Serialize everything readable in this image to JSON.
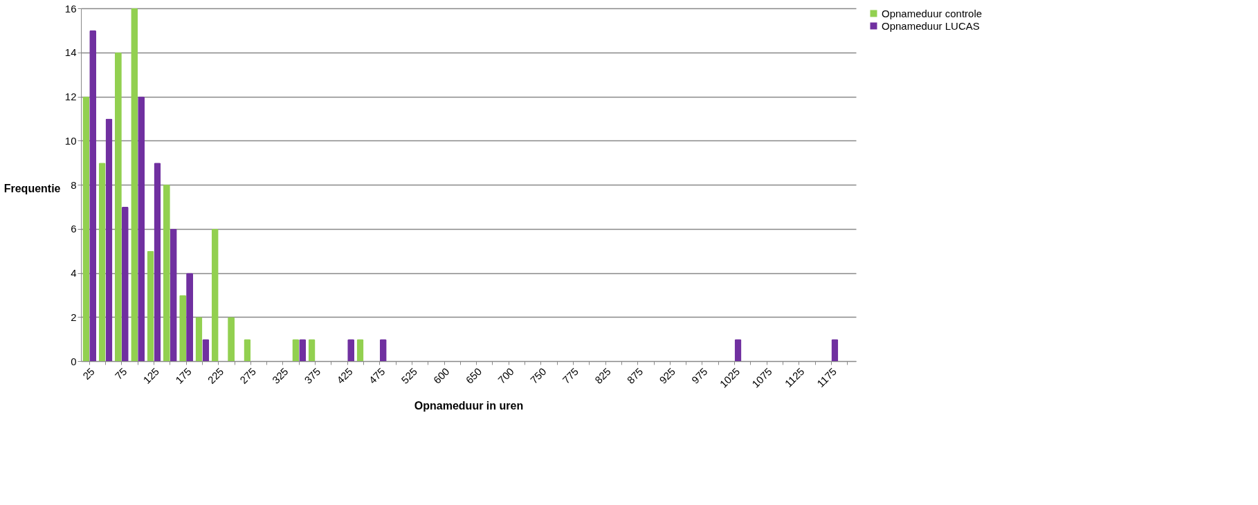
{
  "chart_data": {
    "type": "bar",
    "xlabel": "Opnameduur in uren",
    "ylabel": "Frequentie",
    "categories": [
      "25",
      null,
      "75",
      null,
      "125",
      null,
      "175",
      null,
      "225",
      null,
      "275",
      null,
      "325",
      null,
      "375",
      null,
      "425",
      null,
      "475",
      null,
      "525",
      null,
      "600",
      null,
      "650",
      null,
      "700",
      null,
      "750",
      null,
      "775",
      null,
      "825",
      null,
      "875",
      null,
      "925",
      null,
      "975",
      null,
      "1025",
      null,
      "1075",
      null,
      "1125",
      null,
      "1175",
      null
    ],
    "series": [
      {
        "name": "Opnameduur controle",
        "color": "#92d050",
        "values": [
          12,
          9,
          14,
          16,
          5,
          8,
          3,
          2,
          6,
          2,
          1,
          0,
          0,
          1,
          1,
          0,
          0,
          1,
          0,
          0,
          0,
          0,
          0,
          0,
          0,
          0,
          0,
          0,
          0,
          0,
          0,
          0,
          0,
          0,
          0,
          0,
          0,
          0,
          0,
          0,
          0,
          0,
          0,
          0,
          0,
          0,
          0,
          0
        ]
      },
      {
        "name": "Opnameduur LUCAS",
        "color": "#7030a0",
        "values": [
          15,
          11,
          7,
          12,
          9,
          6,
          4,
          1,
          0,
          0,
          0,
          0,
          0,
          1,
          0,
          0,
          1,
          0,
          1,
          0,
          0,
          0,
          0,
          0,
          0,
          0,
          0,
          0,
          0,
          0,
          0,
          0,
          0,
          0,
          0,
          0,
          0,
          0,
          0,
          0,
          1,
          0,
          0,
          0,
          0,
          0,
          1,
          0
        ]
      }
    ],
    "ylim": [
      0,
      16
    ],
    "yticks": [
      0,
      2,
      4,
      6,
      8,
      10,
      12,
      14,
      16
    ],
    "grid": "y",
    "legend": "right"
  }
}
